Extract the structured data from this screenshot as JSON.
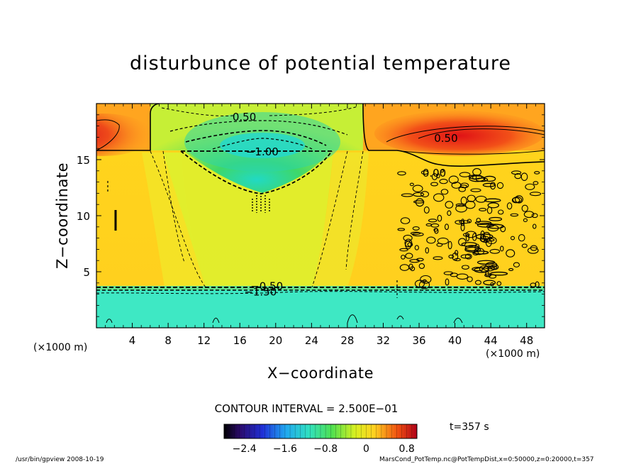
{
  "chart_data": {
    "type": "heatmap",
    "title": "disturbunce of potential temperature",
    "xlabel": "X−coordinate",
    "ylabel": "Z−coordinate",
    "x_unit_label": "(×1000 m)",
    "y_unit_label": "(×1000 m)",
    "xlim": [
      0,
      50
    ],
    "ylim": [
      0,
      20
    ],
    "x_ticks": [
      4,
      8,
      12,
      16,
      20,
      24,
      28,
      32,
      36,
      40,
      44,
      48
    ],
    "y_ticks": [
      5,
      10,
      15
    ],
    "contour_labels": [
      {
        "text": "0.50",
        "x": 16.5,
        "z": 18.8
      },
      {
        "text": "−1.00",
        "x": 18.5,
        "z": 15.7
      },
      {
        "text": "0.50",
        "x": 39,
        "z": 16.9
      },
      {
        "text": "0.00",
        "x": 37.7,
        "z": 13.8
      },
      {
        "text": "−0.50",
        "x": 19,
        "z": 3.7
      },
      {
        "text": "−1.50",
        "x": 18.3,
        "z": 3.2
      }
    ],
    "contour_interval_text": "CONTOUR INTERVAL = 2.500E−01",
    "colorbar": {
      "min": -2.8,
      "max": 1.0,
      "ticks": [
        "−2.4",
        "−1.6",
        "−0.8",
        "0",
        "0.8"
      ],
      "tick_values": [
        -2.4,
        -1.6,
        -0.8,
        0,
        0.8
      ]
    },
    "field_regions": [
      {
        "name": "lower layer",
        "x": [
          0,
          50
        ],
        "z": [
          0,
          3.6
        ],
        "value": -1.5
      },
      {
        "name": "middle layer",
        "x": [
          0,
          50
        ],
        "z": [
          3.6,
          15.8
        ],
        "value": 0.0
      },
      {
        "name": "central cool dome",
        "x": [
          9.5,
          28.5
        ],
        "z": [
          10,
          20
        ],
        "value": -1.0
      },
      {
        "name": "left warm cell",
        "x": [
          0,
          5.5
        ],
        "z": [
          15.8,
          20
        ],
        "value": 0.8
      },
      {
        "name": "right warm cell",
        "x": [
          32,
          50
        ],
        "z": [
          15.8,
          20
        ],
        "value": 0.9
      }
    ]
  },
  "time_label": "t=357 s",
  "footer": {
    "left": "/usr/bin/gpview   2008-10-19",
    "right": "MarsCond_PotTemp.nc@PotTempDist,x=0:50000,z=0:20000,t=357"
  },
  "colors": {
    "background": "#FFD21E",
    "warm": "#E82814",
    "cool": "#3CE9C4",
    "green": "#5FE06A"
  }
}
